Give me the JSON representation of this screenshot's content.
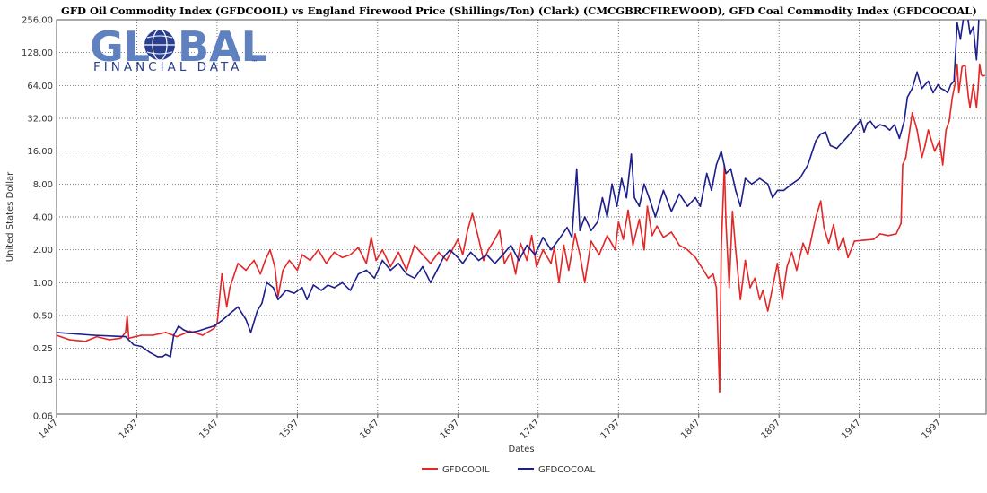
{
  "chart_data": {
    "type": "line",
    "title": "GFD Oil Commodity Index (GFDCOOIL)  vs  England Firewood Price (Shillings/Ton) (Clark) (CMCGBRCFIREWOOD), GFD Coal Commodity Index (GFDCOCOAL)",
    "xlabel": "Dates",
    "ylabel": "United States Dollar",
    "yscale": "log2",
    "xlim": [
      1447,
      2026
    ],
    "ylim": [
      0.0625,
      256
    ],
    "x_ticks": [
      1447,
      1497,
      1547,
      1597,
      1647,
      1697,
      1747,
      1797,
      1847,
      1897,
      1947,
      1997
    ],
    "y_ticks": [
      0.06,
      0.13,
      0.25,
      0.5,
      1,
      2,
      4,
      8,
      16,
      32,
      64,
      128,
      256
    ],
    "y_tick_labels": [
      "0.06",
      "0.13",
      "0.25",
      "0.50",
      "1.00",
      "2.00",
      "4.00",
      "8.00",
      "16.00",
      "32.00",
      "64.00",
      "128.00",
      "256.00"
    ],
    "grid": true,
    "legend_position": "bottom-center",
    "series": [
      {
        "name": "GFDCOOIL",
        "color": "#e32626",
        "points": [
          [
            1447,
            0.33
          ],
          [
            1455,
            0.3
          ],
          [
            1465,
            0.29
          ],
          [
            1472,
            0.32
          ],
          [
            1480,
            0.3
          ],
          [
            1487,
            0.31
          ],
          [
            1490,
            0.35
          ],
          [
            1491,
            0.5
          ],
          [
            1492,
            0.31
          ],
          [
            1500,
            0.33
          ],
          [
            1507,
            0.33
          ],
          [
            1515,
            0.35
          ],
          [
            1522,
            0.32
          ],
          [
            1530,
            0.36
          ],
          [
            1538,
            0.33
          ],
          [
            1545,
            0.38
          ],
          [
            1547,
            0.42
          ],
          [
            1550,
            1.2
          ],
          [
            1553,
            0.6
          ],
          [
            1555,
            0.9
          ],
          [
            1560,
            1.5
          ],
          [
            1565,
            1.3
          ],
          [
            1570,
            1.6
          ],
          [
            1574,
            1.2
          ],
          [
            1577,
            1.6
          ],
          [
            1580,
            2.0
          ],
          [
            1583,
            1.4
          ],
          [
            1585,
            0.75
          ],
          [
            1588,
            1.3
          ],
          [
            1592,
            1.6
          ],
          [
            1597,
            1.3
          ],
          [
            1600,
            1.8
          ],
          [
            1605,
            1.6
          ],
          [
            1610,
            2.0
          ],
          [
            1615,
            1.5
          ],
          [
            1620,
            1.9
          ],
          [
            1625,
            1.7
          ],
          [
            1630,
            1.8
          ],
          [
            1635,
            2.1
          ],
          [
            1640,
            1.5
          ],
          [
            1643,
            2.6
          ],
          [
            1646,
            1.6
          ],
          [
            1650,
            2.0
          ],
          [
            1655,
            1.4
          ],
          [
            1660,
            1.9
          ],
          [
            1665,
            1.3
          ],
          [
            1670,
            2.2
          ],
          [
            1675,
            1.8
          ],
          [
            1680,
            1.5
          ],
          [
            1685,
            1.9
          ],
          [
            1690,
            1.6
          ],
          [
            1697,
            2.5
          ],
          [
            1700,
            1.8
          ],
          [
            1703,
            3.0
          ],
          [
            1706,
            4.3
          ],
          [
            1710,
            2.5
          ],
          [
            1713,
            1.6
          ],
          [
            1716,
            2.0
          ],
          [
            1720,
            2.5
          ],
          [
            1723,
            3.0
          ],
          [
            1726,
            1.5
          ],
          [
            1730,
            1.9
          ],
          [
            1733,
            1.2
          ],
          [
            1736,
            2.3
          ],
          [
            1740,
            1.6
          ],
          [
            1743,
            2.7
          ],
          [
            1746,
            1.4
          ],
          [
            1750,
            2.0
          ],
          [
            1755,
            1.5
          ],
          [
            1757,
            2.1
          ],
          [
            1760,
            1.0
          ],
          [
            1763,
            2.2
          ],
          [
            1766,
            1.3
          ],
          [
            1770,
            2.8
          ],
          [
            1773,
            1.8
          ],
          [
            1776,
            1.0
          ],
          [
            1780,
            2.4
          ],
          [
            1785,
            1.8
          ],
          [
            1790,
            2.7
          ],
          [
            1795,
            2.0
          ],
          [
            1797,
            3.6
          ],
          [
            1800,
            2.5
          ],
          [
            1803,
            4.6
          ],
          [
            1806,
            2.2
          ],
          [
            1810,
            3.8
          ],
          [
            1813,
            2.0
          ],
          [
            1815,
            5.0
          ],
          [
            1818,
            2.7
          ],
          [
            1821,
            3.3
          ],
          [
            1825,
            2.6
          ],
          [
            1830,
            2.9
          ],
          [
            1835,
            2.2
          ],
          [
            1840,
            2.0
          ],
          [
            1845,
            1.7
          ],
          [
            1850,
            1.3
          ],
          [
            1853,
            1.1
          ],
          [
            1856,
            1.2
          ],
          [
            1858,
            0.9
          ],
          [
            1860,
            0.1
          ],
          [
            1861,
            2.0
          ],
          [
            1863,
            12.0
          ],
          [
            1864,
            3.5
          ],
          [
            1866,
            0.9
          ],
          [
            1868,
            4.5
          ],
          [
            1870,
            2.0
          ],
          [
            1873,
            0.7
          ],
          [
            1876,
            1.6
          ],
          [
            1879,
            0.9
          ],
          [
            1882,
            1.1
          ],
          [
            1885,
            0.7
          ],
          [
            1887,
            0.85
          ],
          [
            1890,
            0.55
          ],
          [
            1893,
            0.9
          ],
          [
            1896,
            1.5
          ],
          [
            1899,
            0.7
          ],
          [
            1902,
            1.4
          ],
          [
            1905,
            1.9
          ],
          [
            1908,
            1.3
          ],
          [
            1912,
            2.3
          ],
          [
            1915,
            1.8
          ],
          [
            1920,
            4.0
          ],
          [
            1923,
            5.6
          ],
          [
            1925,
            3.2
          ],
          [
            1928,
            2.3
          ],
          [
            1931,
            3.4
          ],
          [
            1934,
            2.0
          ],
          [
            1937,
            2.6
          ],
          [
            1940,
            1.7
          ],
          [
            1944,
            2.4
          ],
          [
            1950,
            2.45
          ],
          [
            1956,
            2.5
          ],
          [
            1960,
            2.8
          ],
          [
            1965,
            2.7
          ],
          [
            1970,
            2.8
          ],
          [
            1973,
            3.5
          ],
          [
            1974,
            12.0
          ],
          [
            1976,
            14.0
          ],
          [
            1980,
            36.0
          ],
          [
            1983,
            25.0
          ],
          [
            1986,
            14.0
          ],
          [
            1988,
            18.0
          ],
          [
            1990,
            25.0
          ],
          [
            1994,
            16.0
          ],
          [
            1997,
            20.0
          ],
          [
            1999,
            12.0
          ],
          [
            2001,
            25.0
          ],
          [
            2003,
            30.0
          ],
          [
            2005,
            50.0
          ],
          [
            2007,
            70.0
          ],
          [
            2008,
            100.0
          ],
          [
            2009,
            55.0
          ],
          [
            2011,
            95.0
          ],
          [
            2013,
            98.0
          ],
          [
            2015,
            50.0
          ],
          [
            2016,
            40.0
          ],
          [
            2018,
            65.0
          ],
          [
            2020,
            40.0
          ],
          [
            2021,
            60.0
          ],
          [
            2022,
            100.0
          ],
          [
            2023,
            80.0
          ],
          [
            2024,
            78.0
          ],
          [
            2025,
            79.0
          ]
        ]
      },
      {
        "name": "GFDCOCOAL",
        "color": "#1c1e8c",
        "points": [
          [
            1447,
            0.35
          ],
          [
            1470,
            0.33
          ],
          [
            1490,
            0.32
          ],
          [
            1495,
            0.27
          ],
          [
            1500,
            0.26
          ],
          [
            1505,
            0.23
          ],
          [
            1510,
            0.21
          ],
          [
            1513,
            0.21
          ],
          [
            1515,
            0.22
          ],
          [
            1518,
            0.21
          ],
          [
            1520,
            0.33
          ],
          [
            1523,
            0.4
          ],
          [
            1526,
            0.37
          ],
          [
            1530,
            0.35
          ],
          [
            1535,
            0.36
          ],
          [
            1540,
            0.38
          ],
          [
            1545,
            0.4
          ],
          [
            1550,
            0.45
          ],
          [
            1555,
            0.52
          ],
          [
            1560,
            0.6
          ],
          [
            1565,
            0.46
          ],
          [
            1568,
            0.35
          ],
          [
            1572,
            0.55
          ],
          [
            1575,
            0.65
          ],
          [
            1578,
            1.0
          ],
          [
            1582,
            0.9
          ],
          [
            1585,
            0.7
          ],
          [
            1590,
            0.85
          ],
          [
            1595,
            0.8
          ],
          [
            1600,
            0.9
          ],
          [
            1603,
            0.7
          ],
          [
            1607,
            0.95
          ],
          [
            1612,
            0.85
          ],
          [
            1616,
            0.95
          ],
          [
            1620,
            0.9
          ],
          [
            1625,
            1.0
          ],
          [
            1630,
            0.85
          ],
          [
            1635,
            1.2
          ],
          [
            1640,
            1.3
          ],
          [
            1645,
            1.1
          ],
          [
            1650,
            1.6
          ],
          [
            1655,
            1.3
          ],
          [
            1660,
            1.5
          ],
          [
            1665,
            1.2
          ],
          [
            1670,
            1.1
          ],
          [
            1675,
            1.4
          ],
          [
            1680,
            1.0
          ],
          [
            1684,
            1.3
          ],
          [
            1688,
            1.7
          ],
          [
            1692,
            2.0
          ],
          [
            1697,
            1.7
          ],
          [
            1700,
            1.5
          ],
          [
            1705,
            1.9
          ],
          [
            1710,
            1.6
          ],
          [
            1715,
            1.8
          ],
          [
            1720,
            1.5
          ],
          [
            1725,
            1.8
          ],
          [
            1730,
            2.2
          ],
          [
            1735,
            1.6
          ],
          [
            1740,
            2.2
          ],
          [
            1745,
            1.8
          ],
          [
            1750,
            2.6
          ],
          [
            1755,
            2.0
          ],
          [
            1760,
            2.5
          ],
          [
            1765,
            3.2
          ],
          [
            1768,
            2.6
          ],
          [
            1771,
            11.0
          ],
          [
            1773,
            3.0
          ],
          [
            1776,
            4.0
          ],
          [
            1780,
            3.0
          ],
          [
            1784,
            3.6
          ],
          [
            1787,
            6.0
          ],
          [
            1790,
            4.0
          ],
          [
            1793,
            8.0
          ],
          [
            1796,
            5.0
          ],
          [
            1799,
            9.0
          ],
          [
            1802,
            6.0
          ],
          [
            1805,
            15.0
          ],
          [
            1807,
            6.0
          ],
          [
            1810,
            5.0
          ],
          [
            1813,
            8.0
          ],
          [
            1817,
            5.5
          ],
          [
            1820,
            4.0
          ],
          [
            1825,
            7.0
          ],
          [
            1830,
            4.5
          ],
          [
            1835,
            6.5
          ],
          [
            1840,
            5.0
          ],
          [
            1845,
            6.0
          ],
          [
            1848,
            5.0
          ],
          [
            1852,
            10.0
          ],
          [
            1855,
            7.0
          ],
          [
            1858,
            12.0
          ],
          [
            1861,
            16.0
          ],
          [
            1864,
            10.0
          ],
          [
            1867,
            11.0
          ],
          [
            1870,
            7.0
          ],
          [
            1873,
            5.0
          ],
          [
            1876,
            9.0
          ],
          [
            1880,
            8.0
          ],
          [
            1885,
            9.0
          ],
          [
            1890,
            8.0
          ],
          [
            1893,
            6.0
          ],
          [
            1896,
            7.0
          ],
          [
            1900,
            7.0
          ],
          [
            1905,
            8.0
          ],
          [
            1910,
            9.0
          ],
          [
            1915,
            12.0
          ],
          [
            1920,
            20.0
          ],
          [
            1923,
            23.0
          ],
          [
            1926,
            24.0
          ],
          [
            1929,
            18.0
          ],
          [
            1933,
            17.0
          ],
          [
            1936,
            19.0
          ],
          [
            1940,
            22.0
          ],
          [
            1944,
            26.0
          ],
          [
            1948,
            31.0
          ],
          [
            1950,
            24.0
          ],
          [
            1952,
            29.0
          ],
          [
            1954,
            30.0
          ],
          [
            1957,
            26.0
          ],
          [
            1960,
            28.0
          ],
          [
            1963,
            27.0
          ],
          [
            1966,
            25.0
          ],
          [
            1969,
            28.0
          ],
          [
            1972,
            21.0
          ],
          [
            1975,
            30.0
          ],
          [
            1977,
            50.0
          ],
          [
            1980,
            60.0
          ],
          [
            1983,
            85.0
          ],
          [
            1986,
            60.0
          ],
          [
            1988,
            65.0
          ],
          [
            1990,
            70.0
          ],
          [
            1993,
            55.0
          ],
          [
            1996,
            65.0
          ],
          [
            1998,
            60.0
          ],
          [
            2000,
            58.0
          ],
          [
            2002,
            55.0
          ],
          [
            2004,
            65.0
          ],
          [
            2006,
            70.0
          ],
          [
            2008,
            240.0
          ],
          [
            2010,
            170.0
          ],
          [
            2012,
            270.0
          ],
          [
            2014,
            310.0
          ],
          [
            2016,
            190.0
          ],
          [
            2018,
            220.0
          ],
          [
            2020,
            110.0
          ],
          [
            2021,
            190.0
          ],
          [
            2022,
            380.0
          ],
          [
            2023,
            260.0
          ],
          [
            2024,
            290.0
          ],
          [
            2025,
            260.0
          ]
        ]
      }
    ]
  },
  "logo": {
    "big_text": "GL     BAL",
    "small_text": "FINANCIAL DATA",
    "trademark": "™"
  }
}
